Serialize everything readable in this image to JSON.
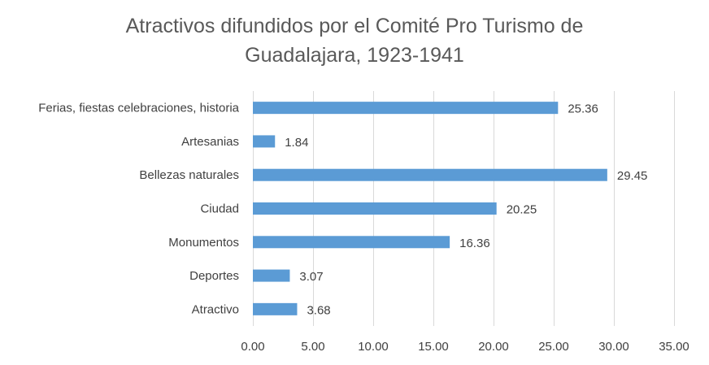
{
  "chart_data": {
    "type": "bar",
    "orientation": "horizontal",
    "title_lines": [
      "Atractivos difundidos por el Comité Pro Turismo de",
      "Guadalajara, 1923-1941"
    ],
    "categories": [
      "Ferias, fiestas celebraciones, historia",
      "Artesanias",
      "Bellezas naturales",
      "Ciudad",
      "Monumentos",
      "Deportes",
      "Atractivo"
    ],
    "values": [
      25.36,
      1.84,
      29.45,
      20.25,
      16.36,
      3.07,
      3.68
    ],
    "data_labels": [
      "25.36",
      "1.84",
      "29.45",
      "20.25",
      "16.36",
      "3.07",
      "3.68"
    ],
    "xlim": [
      0,
      35
    ],
    "xticks": [
      "0.00",
      "5.00",
      "10.00",
      "15.00",
      "20.00",
      "25.00",
      "30.00",
      "35.00"
    ],
    "grid": "vertical",
    "legend": "none",
    "bar_color": "#5b9bd5",
    "grid_color": "#d9d9d9"
  }
}
